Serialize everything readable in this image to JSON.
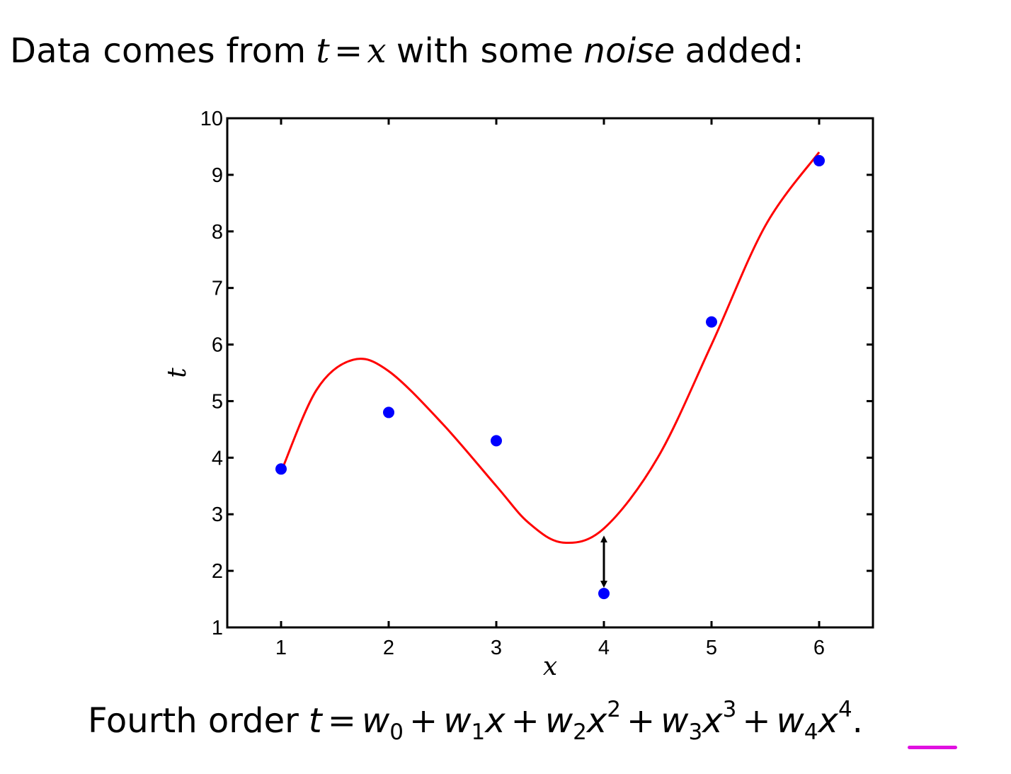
{
  "heading": {
    "prefix": "Data comes from",
    "var_t": "t",
    "equals": "=",
    "var_x": "x",
    "middle": "with some",
    "emph": "noise",
    "suffix": "added:"
  },
  "caption": {
    "label": "Fourth order",
    "t": "t",
    "eq": "=",
    "w": "w",
    "x": "x",
    "plus": "+",
    "period": ".",
    "subs": [
      "0",
      "1",
      "2",
      "3",
      "4"
    ],
    "sups": [
      "2",
      "3",
      "4"
    ],
    "highlight_color": "#e010e0"
  },
  "chart_data": {
    "type": "scatter",
    "xlabel": "x",
    "ylabel": "t",
    "xlim": [
      0.5,
      6.5
    ],
    "ylim": [
      1,
      10
    ],
    "xticks": [
      1,
      2,
      3,
      4,
      5,
      6
    ],
    "yticks": [
      1,
      2,
      3,
      4,
      5,
      6,
      7,
      8,
      9,
      10
    ],
    "grid": false,
    "points": [
      {
        "x": 1,
        "y": 3.8
      },
      {
        "x": 2,
        "y": 4.8
      },
      {
        "x": 3,
        "y": 4.3
      },
      {
        "x": 4,
        "y": 1.6
      },
      {
        "x": 5,
        "y": 6.4
      },
      {
        "x": 6,
        "y": 9.25
      }
    ],
    "curve": {
      "description": "fourth order polynomial fit",
      "points": [
        {
          "x": 1.0,
          "y": 3.75
        },
        {
          "x": 1.33,
          "y": 5.2
        },
        {
          "x": 1.67,
          "y": 5.73
        },
        {
          "x": 2.0,
          "y": 5.53
        },
        {
          "x": 2.5,
          "y": 4.6
        },
        {
          "x": 3.0,
          "y": 3.5
        },
        {
          "x": 3.3,
          "y": 2.85
        },
        {
          "x": 3.62,
          "y": 2.5
        },
        {
          "x": 4.0,
          "y": 2.75
        },
        {
          "x": 4.5,
          "y": 4.0
        },
        {
          "x": 5.0,
          "y": 6.0
        },
        {
          "x": 5.5,
          "y": 8.1
        },
        {
          "x": 6.0,
          "y": 9.4
        }
      ]
    },
    "residual_arrow": {
      "x": 4,
      "y_from": 1.6,
      "y_to": 2.75
    },
    "colors": {
      "points": "#0000ff",
      "curve": "#ff0000",
      "axes": "#000000",
      "arrow": "#000000"
    }
  }
}
